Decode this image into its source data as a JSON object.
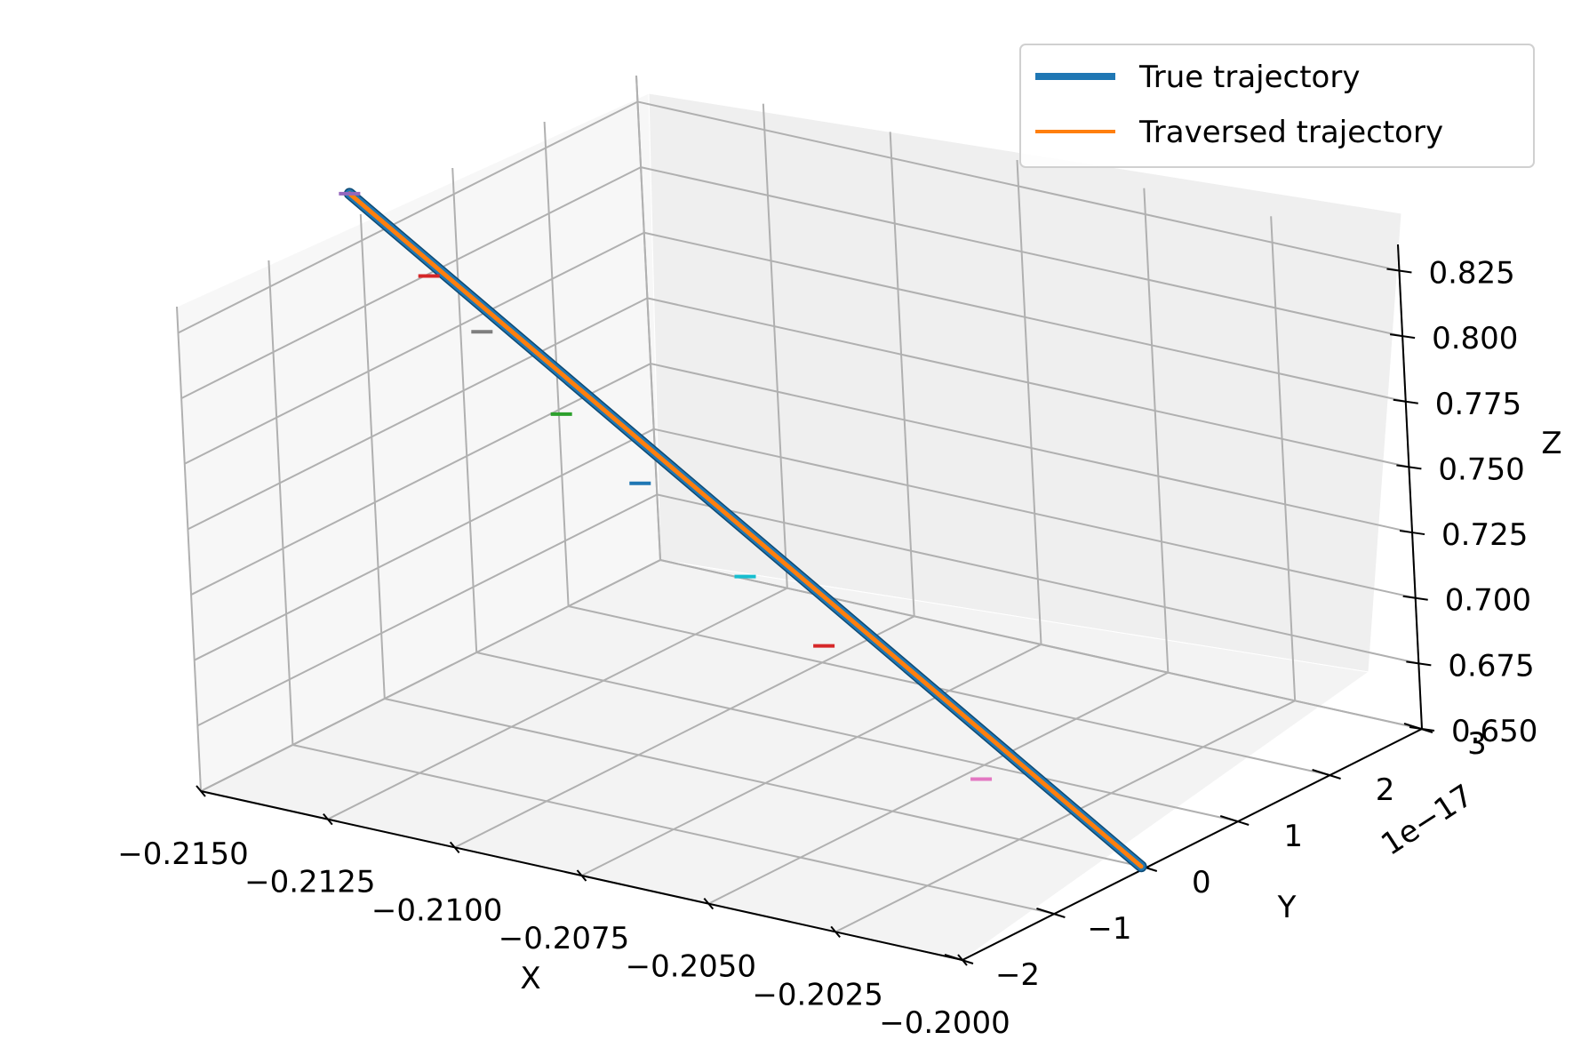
{
  "chart_data": {
    "type": "line",
    "projection": "3d",
    "title": "",
    "x_label": "X",
    "y_label": "Y",
    "z_label": "Z",
    "x_ticks": [
      "−0.2150",
      "−0.2125",
      "−0.2100",
      "−0.2075",
      "−0.2050",
      "−0.2025",
      "−0.2000"
    ],
    "y_ticks": [
      "−2",
      "−1",
      "0",
      "1",
      "2",
      "3"
    ],
    "z_ticks": [
      "0.650",
      "0.675",
      "0.700",
      "0.725",
      "0.750",
      "0.775",
      "0.800",
      "0.825"
    ],
    "y_offset_label": "1e−17",
    "x_range": [
      -0.215,
      -0.2
    ],
    "y_range": [
      -2e-17,
      3e-17
    ],
    "z_range": [
      0.65,
      0.835
    ],
    "grid": true,
    "legend_position": "top-right",
    "series": [
      {
        "name": "True trajectory",
        "color": "#1f77b4",
        "points": [
          {
            "x": -0.2152,
            "y": 0,
            "z": 0.842
          },
          {
            "x": -0.2001,
            "y": 0,
            "z": 0.65
          }
        ]
      },
      {
        "name": "Traversed trajectory",
        "color": "#ff7f0e",
        "points": [
          {
            "x": -0.2152,
            "y": 0,
            "z": 0.842
          },
          {
            "x": -0.2001,
            "y": 0,
            "z": 0.65
          }
        ]
      }
    ],
    "markers": [
      {
        "x": -0.2152,
        "y": 0,
        "z": 0.842,
        "color": "#9467bd"
      },
      {
        "x": -0.2137,
        "y": 0,
        "z": 0.817,
        "color": "#d62728"
      },
      {
        "x": -0.2127,
        "y": 0,
        "z": 0.8,
        "color": "#7f7f7f"
      },
      {
        "x": -0.2112,
        "y": 0,
        "z": 0.775,
        "color": "#2ca02c"
      },
      {
        "x": -0.2097,
        "y": 0,
        "z": 0.755,
        "color": "#1f77b4"
      },
      {
        "x": -0.2077,
        "y": 0,
        "z": 0.728,
        "color": "#17becf"
      },
      {
        "x": -0.2062,
        "y": 0,
        "z": 0.708,
        "color": "#d62728"
      },
      {
        "x": -0.2032,
        "y": 0,
        "z": 0.67,
        "color": "#e377c2"
      }
    ]
  }
}
